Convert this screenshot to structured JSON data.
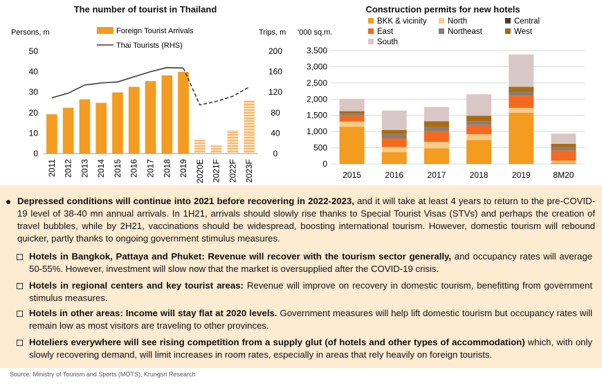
{
  "left_chart": {
    "title": "The number of tourist in Thailand",
    "y_left_label": "Persons, m",
    "y_right_label": "Trips, m",
    "legend": [
      "Foreign Tourist Arrivals",
      "Thai Tourists (RHS)"
    ]
  },
  "right_chart": {
    "title": "Construction permits for new hotels",
    "y_label": "'000 sq.m.",
    "legend": [
      "BKK & vicinity",
      "North",
      "Central",
      "East",
      "Northeast",
      "West",
      "South"
    ]
  },
  "chart_data": [
    {
      "type": "bar",
      "title": "The number of tourist in Thailand",
      "categories": [
        "2011",
        "2012",
        "2013",
        "2014",
        "2015",
        "2016",
        "2017",
        "2018",
        "2019",
        "2020E",
        "2021F",
        "2022F",
        "2023F"
      ],
      "series": [
        {
          "name": "Foreign Tourist Arrivals",
          "axis": "left",
          "values": [
            19.2,
            22.4,
            26.5,
            24.8,
            29.9,
            32.6,
            35.4,
            38.2,
            39.9,
            6.7,
            4.0,
            11.5,
            26.0
          ],
          "forecast_from_index": 9
        },
        {
          "name": "Thai Tourists (RHS)",
          "type": "line",
          "axis": "right",
          "values": [
            109,
            118,
            134,
            138,
            140,
            150,
            160,
            168,
            167,
            95,
            102,
            112,
            130
          ],
          "dashed_from_index": 8
        }
      ],
      "xlabel": "",
      "ylabel": "Persons, m",
      "ylabel_right": "Trips, m",
      "ylim": [
        0,
        50
      ],
      "ylim_right": [
        0,
        200
      ],
      "yticks": [
        0,
        10,
        20,
        30,
        40,
        50
      ],
      "yticks_right": [
        0,
        40,
        80,
        120,
        160,
        200
      ],
      "colors": {
        "bar": "#f39c1f",
        "bar_forecast": "#f7b96a",
        "line": "#3a3a3a"
      }
    },
    {
      "type": "bar",
      "stacked": true,
      "title": "Construction permits for new hotels",
      "categories": [
        "2015",
        "2016",
        "2017",
        "2018",
        "2019",
        "8M20"
      ],
      "series": [
        {
          "name": "BKK & vicinity",
          "color": "#f39c1f",
          "values": [
            1150,
            370,
            480,
            740,
            1580,
            40
          ]
        },
        {
          "name": "North",
          "color": "#f9cb8a",
          "values": [
            160,
            150,
            200,
            180,
            150,
            60
          ]
        },
        {
          "name": "Central",
          "color": "#4a3b36",
          "values": [
            0,
            0,
            0,
            0,
            0,
            0
          ]
        },
        {
          "name": "East",
          "color": "#f36a1e",
          "values": [
            180,
            270,
            330,
            280,
            380,
            320
          ]
        },
        {
          "name": "Northeast",
          "color": "#8a7c79",
          "values": [
            60,
            130,
            130,
            120,
            120,
            100
          ]
        },
        {
          "name": "West",
          "color": "#a96c10",
          "values": [
            80,
            130,
            180,
            170,
            150,
            100
          ]
        },
        {
          "name": "South",
          "color": "#d9c7c7",
          "values": [
            380,
            600,
            440,
            660,
            1000,
            320
          ]
        }
      ],
      "ylabel": "'000 sq.m.",
      "ylim": [
        0,
        3500
      ],
      "yticks": [
        0,
        500,
        1000,
        1500,
        2000,
        2500,
        3000,
        3500
      ],
      "legend_position": "top"
    }
  ],
  "text": {
    "main_bold": "Depressed conditions will continue into 2021 before recovering in 2022-2023,",
    "main_rest": " and it will take at least 4 years to return to the pre-COVID-19 level of 38-40 mn annual arrivals. In 1H21, arrivals should slowly rise thanks to Special Tourist Visas (STVs) and perhaps the creation of travel bubbles, while by 2H21, vaccinations should be widespread, boosting international tourism. However, domestic tourism will rebound quicker, partly thanks to ongoing government stimulus measures.",
    "sub1_bold": "Hotels in Bangkok, Pattaya and Phuket: Revenue will recover with the tourism sector generally,",
    "sub1_rest": " and occupancy rates will average 50-55%. However, investment will slow now that the market is oversupplied after the COVID-19 crisis.",
    "sub2_bold": "Hotels in regional centers and key tourist areas:",
    "sub2_rest": " Revenue will improve on recovery in domestic tourism, benefitting from government stimulus measures.",
    "sub3_bold": "Hotels in other areas: Income will stay flat at 2020 levels.",
    "sub3_rest": " Government measures will help lift domestic tourism but occupancy rates will remain low as most visitors are traveling to other provinces.",
    "sub4_bold": "Hoteliers everywhere will see rising competition from a supply glut (of hotels and other types of accommodation)",
    "sub4_rest": " which, with only slowly recovering demand, will limit increases in room rates, especially in areas that rely heavily on foreign tourists."
  },
  "source": "Source: Ministry of Tourism and Sports (MOTS), Krungsri Research"
}
